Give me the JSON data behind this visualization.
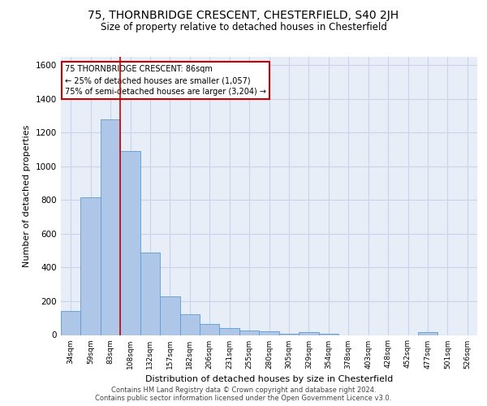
{
  "title_line1": "75, THORNBRIDGE CRESCENT, CHESTERFIELD, S40 2JH",
  "title_line2": "Size of property relative to detached houses in Chesterfield",
  "xlabel": "Distribution of detached houses by size in Chesterfield",
  "ylabel": "Number of detached properties",
  "footer_line1": "Contains HM Land Registry data © Crown copyright and database right 2024.",
  "footer_line2": "Contains public sector information licensed under the Open Government Licence v3.0.",
  "bar_labels": [
    "34sqm",
    "59sqm",
    "83sqm",
    "108sqm",
    "132sqm",
    "157sqm",
    "182sqm",
    "206sqm",
    "231sqm",
    "255sqm",
    "280sqm",
    "305sqm",
    "329sqm",
    "354sqm",
    "378sqm",
    "403sqm",
    "428sqm",
    "452sqm",
    "477sqm",
    "501sqm",
    "526sqm"
  ],
  "bar_values": [
    140,
    815,
    1280,
    1090,
    490,
    230,
    125,
    65,
    40,
    28,
    20,
    5,
    15,
    5,
    0,
    0,
    0,
    0,
    15,
    0,
    0
  ],
  "bar_color": "#aec6e8",
  "bar_edgecolor": "#5b9bd5",
  "ylim": [
    0,
    1650
  ],
  "yticks": [
    0,
    200,
    400,
    600,
    800,
    1000,
    1200,
    1400,
    1600
  ],
  "annotation_line1": "75 THORNBRIDGE CRESCENT: 86sqm",
  "annotation_line2": "← 25% of detached houses are smaller (1,057)",
  "annotation_line3": "75% of semi-detached houses are larger (3,204) →",
  "vline_x_index": 2,
  "vline_color": "#cc0000",
  "annotation_box_color": "#cc0000",
  "grid_color": "#c8d4e8",
  "plot_bg_color": "#e8eef8"
}
